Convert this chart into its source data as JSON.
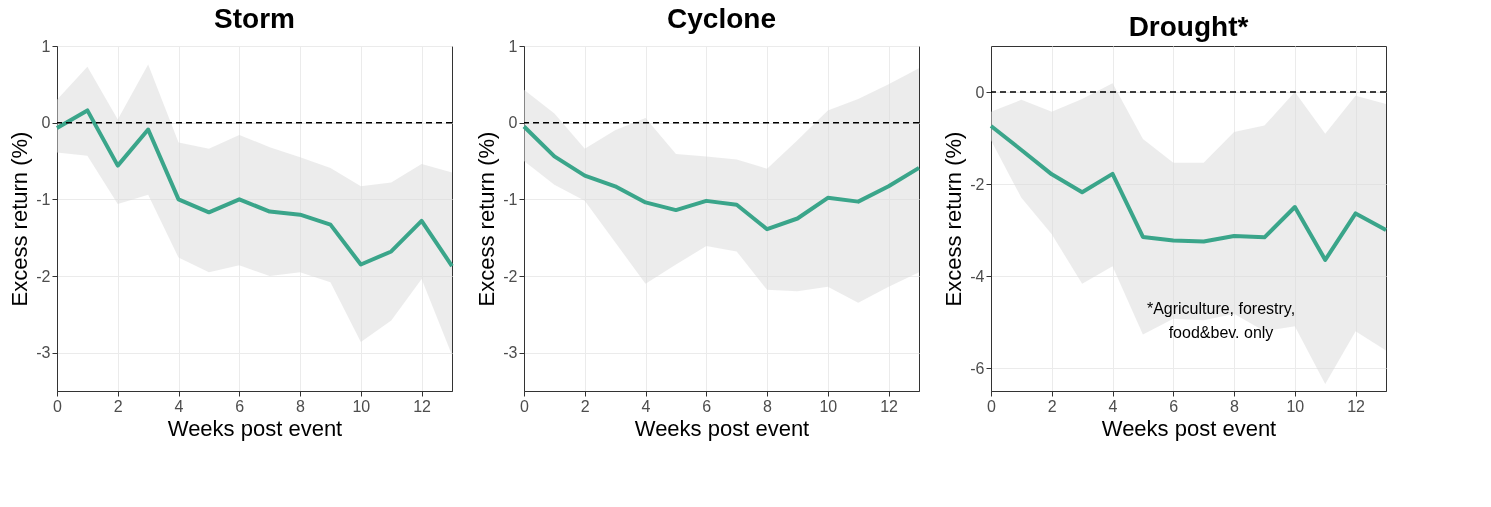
{
  "chart_data": [
    {
      "type": "line",
      "title": "Storm",
      "xlabel": "Weeks post event",
      "ylabel": "Excess return (%)",
      "x": [
        0,
        1,
        2,
        3,
        4,
        5,
        6,
        7,
        8,
        9,
        10,
        11,
        12,
        13
      ],
      "series": [
        {
          "color": "#3aa58a",
          "values": [
            -0.07,
            0.16,
            -0.56,
            -0.09,
            -1.0,
            -1.17,
            -1.0,
            -1.16,
            -1.2,
            -1.33,
            -1.85,
            -1.68,
            -1.28,
            -1.87
          ],
          "upper": [
            0.3,
            0.73,
            0.04,
            0.76,
            -0.26,
            -0.34,
            -0.16,
            -0.32,
            -0.45,
            -0.59,
            -0.83,
            -0.78,
            -0.54,
            -0.65
          ],
          "lower": [
            -0.39,
            -0.43,
            -1.06,
            -0.94,
            -1.76,
            -1.95,
            -1.86,
            -2.0,
            -1.95,
            -2.08,
            -2.86,
            -2.58,
            -2.04,
            -3.03
          ]
        }
      ],
      "xlim": [
        0,
        13
      ],
      "ylim": [
        -3.5,
        1
      ],
      "xticks": [
        0,
        2,
        4,
        6,
        8,
        10,
        12
      ],
      "yticks": [
        -3,
        -2,
        -1,
        0,
        1
      ],
      "grid": true,
      "ref_lines": [
        {
          "axis": "y",
          "value": 0,
          "color": "#000000",
          "line_style": "dashed"
        }
      ]
    },
    {
      "type": "line",
      "title": "Cyclone",
      "xlabel": "Weeks post event",
      "ylabel": "Excess return (%)",
      "x": [
        0,
        1,
        2,
        3,
        4,
        5,
        6,
        7,
        8,
        9,
        10,
        11,
        12,
        13
      ],
      "series": [
        {
          "color": "#3aa58a",
          "values": [
            -0.05,
            -0.44,
            -0.69,
            -0.83,
            -1.04,
            -1.14,
            -1.02,
            -1.07,
            -1.39,
            -1.25,
            -0.98,
            -1.03,
            -0.83,
            -0.59
          ],
          "upper": [
            0.43,
            0.12,
            -0.34,
            -0.1,
            0.06,
            -0.41,
            -0.44,
            -0.48,
            -0.6,
            -0.23,
            0.16,
            0.31,
            0.5,
            0.71
          ],
          "lower": [
            -0.5,
            -0.81,
            -1.02,
            -1.56,
            -2.1,
            -1.85,
            -1.61,
            -1.68,
            -2.18,
            -2.2,
            -2.14,
            -2.35,
            -2.14,
            -1.95
          ]
        }
      ],
      "xlim": [
        0,
        13
      ],
      "ylim": [
        -3.5,
        1
      ],
      "xticks": [
        0,
        2,
        4,
        6,
        8,
        10,
        12
      ],
      "yticks": [
        -3,
        -2,
        -1,
        0,
        1
      ],
      "grid": true,
      "ref_lines": [
        {
          "axis": "y",
          "value": 0,
          "color": "#000000",
          "line_style": "dashed"
        }
      ]
    },
    {
      "type": "line",
      "title": "Drought*",
      "xlabel": "Weeks post event",
      "ylabel": "Excess return (%)",
      "x": [
        0,
        1,
        2,
        3,
        4,
        5,
        6,
        7,
        8,
        9,
        10,
        11,
        12,
        13
      ],
      "series": [
        {
          "color": "#3aa58a",
          "values": [
            -0.74,
            -1.26,
            -1.79,
            -2.18,
            -1.78,
            -3.15,
            -3.23,
            -3.25,
            -3.13,
            -3.16,
            -2.5,
            -3.65,
            -2.64,
            -3.0
          ],
          "upper": [
            -0.43,
            -0.17,
            -0.43,
            -0.15,
            0.19,
            -1.02,
            -1.54,
            -1.54,
            -0.87,
            -0.73,
            0.0,
            -0.91,
            -0.08,
            -0.26
          ],
          "lower": [
            -1.05,
            -2.3,
            -3.09,
            -4.17,
            -3.79,
            -5.27,
            -4.93,
            -4.96,
            -4.82,
            -5.2,
            -5.09,
            -6.35,
            -5.2,
            -5.62
          ]
        }
      ],
      "xlim": [
        0,
        13
      ],
      "ylim": [
        -6.5,
        1
      ],
      "xticks": [
        0,
        2,
        4,
        6,
        8,
        10,
        12
      ],
      "yticks": [
        -6,
        -4,
        -2,
        0
      ],
      "grid": true,
      "ref_lines": [
        {
          "axis": "y",
          "value": 0,
          "color": "#000000",
          "line_style": "dashed"
        }
      ],
      "annotations": [
        "*Agriculture, forestry,\nfood&bev. only"
      ]
    }
  ]
}
